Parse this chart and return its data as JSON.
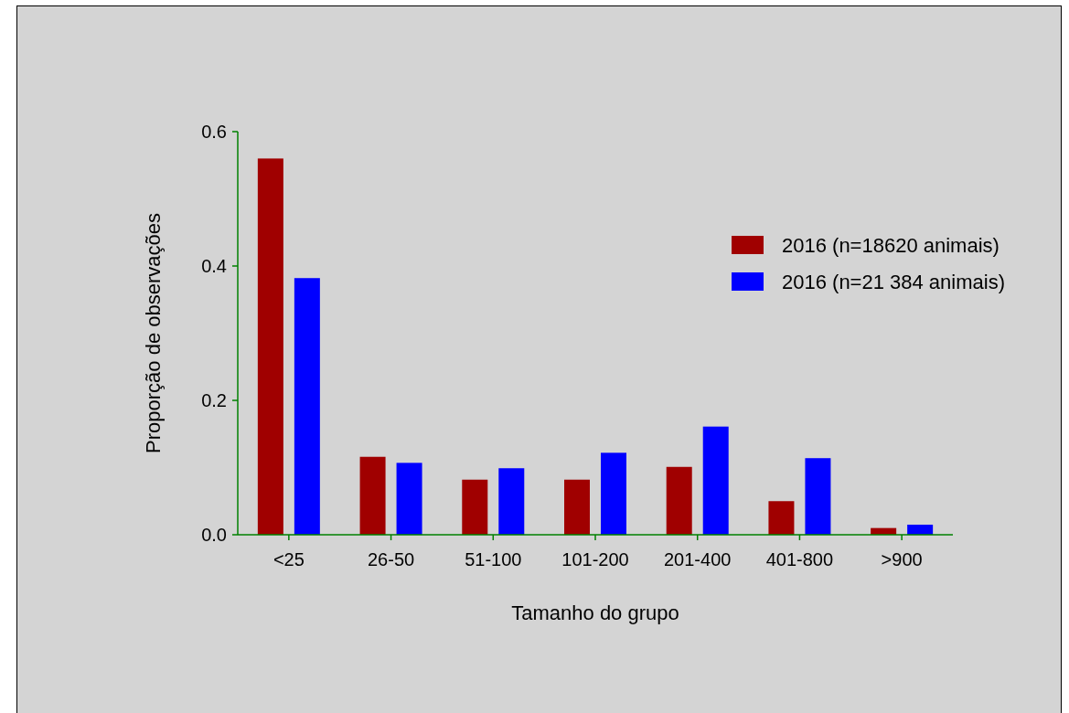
{
  "chart_data": {
    "type": "bar",
    "xlabel": "Tamanho do grupo",
    "ylabel": "Proporção de observações",
    "categories": [
      "<25",
      "26-50",
      "51-100",
      "101-200",
      "201-400",
      "401-800",
      ">900"
    ],
    "series": [
      {
        "name": "2016 (n=18620 animais)",
        "color": "#a00000",
        "values": [
          0.56,
          0.116,
          0.082,
          0.082,
          0.101,
          0.05,
          0.01
        ]
      },
      {
        "name": "2016 (n=21 384 animais)",
        "color": "#0000ff",
        "values": [
          0.382,
          0.107,
          0.099,
          0.122,
          0.161,
          0.114,
          0.015
        ]
      }
    ],
    "ylim": [
      0,
      0.6
    ],
    "yticks": [
      {
        "value": 0,
        "label": "0.0"
      },
      0.2,
      0.4,
      0.6
    ],
    "legend": "right",
    "grid": false
  }
}
